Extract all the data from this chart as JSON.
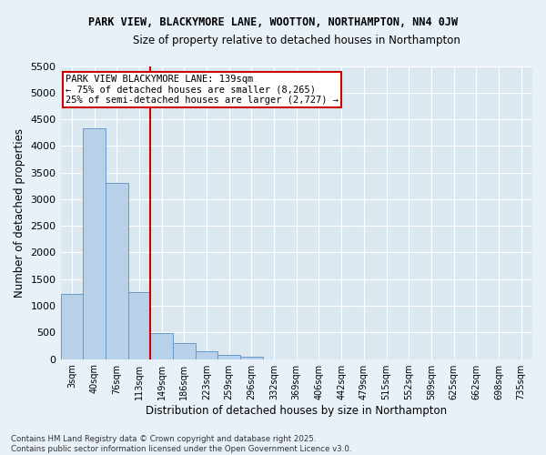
{
  "title1": "PARK VIEW, BLACKYMORE LANE, WOOTTON, NORTHAMPTON, NN4 0JW",
  "title2": "Size of property relative to detached houses in Northampton",
  "xlabel": "Distribution of detached houses by size in Northampton",
  "ylabel": "Number of detached properties",
  "categories": [
    "3sqm",
    "40sqm",
    "76sqm",
    "113sqm",
    "149sqm",
    "186sqm",
    "223sqm",
    "259sqm",
    "296sqm",
    "332sqm",
    "369sqm",
    "406sqm",
    "442sqm",
    "479sqm",
    "515sqm",
    "552sqm",
    "589sqm",
    "625sqm",
    "662sqm",
    "698sqm",
    "735sqm"
  ],
  "values": [
    1220,
    4330,
    3300,
    1250,
    490,
    300,
    155,
    80,
    45,
    0,
    0,
    0,
    0,
    0,
    0,
    0,
    0,
    0,
    0,
    0,
    0
  ],
  "bar_color": "#b8d0e8",
  "bar_edge_color": "#6699cc",
  "vline_color": "#cc0000",
  "vline_x": 3.5,
  "ylim": [
    0,
    5500
  ],
  "yticks": [
    0,
    500,
    1000,
    1500,
    2000,
    2500,
    3000,
    3500,
    4000,
    4500,
    5000,
    5500
  ],
  "bg_color": "#dce8f0",
  "fig_bg_color": "#e8f0f8",
  "grid_color": "#ffffff",
  "annotation_text": "PARK VIEW BLACKYMORE LANE: 139sqm\n← 75% of detached houses are smaller (8,265)\n25% of semi-detached houses are larger (2,727) →",
  "annotation_box_facecolor": "#ffffff",
  "annotation_box_edgecolor": "#cc0000",
  "footer1": "Contains HM Land Registry data © Crown copyright and database right 2025.",
  "footer2": "Contains public sector information licensed under the Open Government Licence v3.0."
}
